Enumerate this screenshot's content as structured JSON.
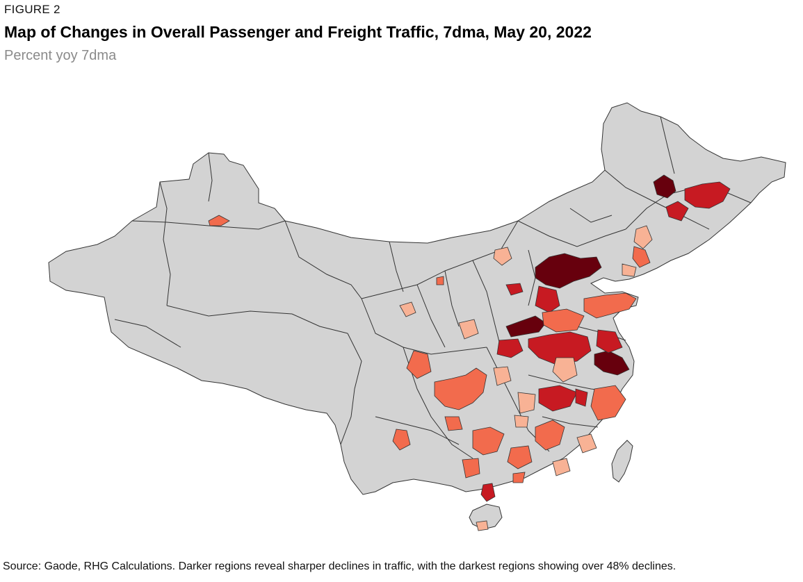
{
  "figure": {
    "label": "FIGURE 2",
    "title": "Map of Changes in Overall Passenger and Freight Traffic, 7dma, May 20, 2022",
    "subtitle": "Percent yoy 7dma",
    "source": "Source: Gaode, RHG Calculations. Darker regions reveal sharper declines in traffic, with the darkest regions showing over 48% declines."
  },
  "map": {
    "colors": {
      "no_data": "#d3d3d3",
      "border": "#333333",
      "light": "#f8b295",
      "medium": "#f26b4d",
      "dark": "#c71a22",
      "darkest": "#67000d"
    }
  }
}
